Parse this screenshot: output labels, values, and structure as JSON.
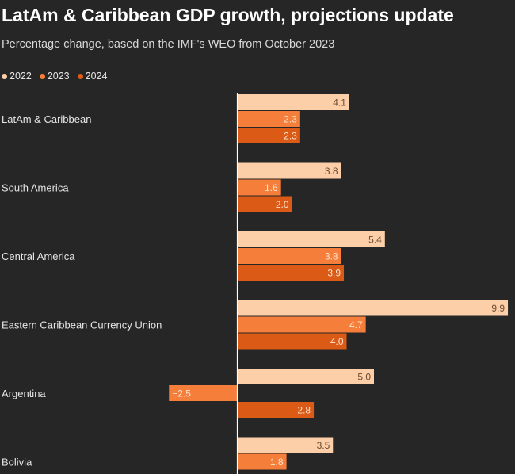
{
  "title": "LatAm & Caribbean GDP growth, projections update",
  "subtitle": "Percentage change, based on the IMF's WEO from October 2023",
  "colors": {
    "background": "#262626",
    "s2022": "#fdcfa9",
    "s2023": "#f57e3a",
    "s2024": "#db5a16",
    "axis": "#ffffff",
    "category_text": "#e6e6e6"
  },
  "chart_data": {
    "type": "bar",
    "orientation": "horizontal",
    "title": "LatAm & Caribbean GDP growth, projections update",
    "subtitle": "Percentage change, based on the IMF's WEO from October 2023",
    "categories": [
      "LatAm & Caribbean",
      "South America",
      "Central America",
      "Eastern Caribbean Currency Union",
      "Argentina",
      "Bolivia"
    ],
    "series": [
      {
        "name": "2022",
        "values": [
          4.1,
          3.8,
          5.4,
          9.9,
          5.0,
          3.5
        ],
        "labels": [
          "4.1",
          "3.8",
          "5.4",
          "9.9",
          "5.0",
          "3.5"
        ]
      },
      {
        "name": "2023",
        "values": [
          2.3,
          1.6,
          3.8,
          4.7,
          -2.5,
          1.8
        ],
        "labels": [
          "2.3",
          "1.6",
          "3.8",
          "4.7",
          "−2.5",
          "1.8"
        ]
      },
      {
        "name": "2024",
        "values": [
          2.3,
          2.0,
          3.9,
          4.0,
          2.8,
          null
        ],
        "labels": [
          "2.3",
          "2.0",
          "3.9",
          "4.0",
          "2.8",
          ""
        ]
      }
    ],
    "xlim": [
      -2.75,
      10.5
    ],
    "legend_position": "top-left",
    "grid": false
  }
}
